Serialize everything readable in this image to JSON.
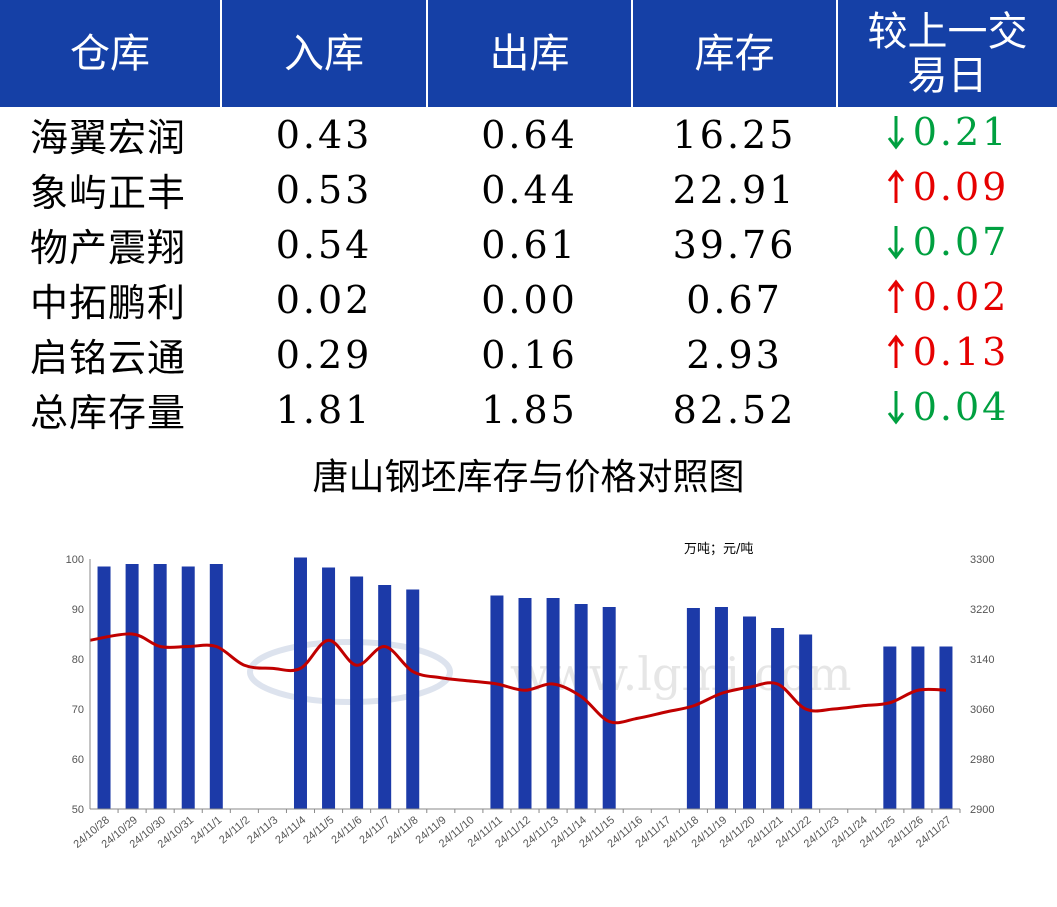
{
  "table": {
    "headers": [
      "仓库",
      "入库",
      "出库",
      "库存",
      "较上一交易日"
    ],
    "rows": [
      {
        "warehouse": "海翼宏润",
        "in": "0.43",
        "out": "0.64",
        "stock": "16.25",
        "dir": "down",
        "change": "0.21"
      },
      {
        "warehouse": "象屿正丰",
        "in": "0.53",
        "out": "0.44",
        "stock": "22.91",
        "dir": "up",
        "change": "0.09"
      },
      {
        "warehouse": "物产震翔",
        "in": "0.54",
        "out": "0.61",
        "stock": "39.76",
        "dir": "down",
        "change": "0.07"
      },
      {
        "warehouse": "中拓鹏利",
        "in": "0.02",
        "out": "0.00",
        "stock": "0.67",
        "dir": "up",
        "change": "0.02"
      },
      {
        "warehouse": "启铭云通",
        "in": "0.29",
        "out": "0.16",
        "stock": "2.93",
        "dir": "up",
        "change": "0.13"
      },
      {
        "warehouse": "总库存量",
        "in": "1.81",
        "out": "1.85",
        "stock": "82.52",
        "dir": "down",
        "change": "0.04"
      }
    ]
  },
  "colors": {
    "header_bg": "#1540a6",
    "up": "#e60000",
    "down": "#00a040",
    "bar": "#1c3aa8",
    "line": "#c00000"
  },
  "chart_data": {
    "type": "bar",
    "title": "唐山钢坯库存与价格对照图",
    "unit_label": "万吨；元/吨",
    "categories": [
      "24/10/28",
      "24/10/29",
      "24/10/30",
      "24/10/31",
      "24/11/1",
      "24/11/2",
      "24/11/3",
      "24/11/4",
      "24/11/5",
      "24/11/6",
      "24/11/7",
      "24/11/8",
      "24/11/9",
      "24/11/10",
      "24/11/11",
      "24/11/12",
      "24/11/13",
      "24/11/14",
      "24/11/15",
      "24/11/16",
      "24/11/17",
      "24/11/18",
      "24/11/19",
      "24/11/20",
      "24/11/21",
      "24/11/22",
      "24/11/23",
      "24/11/24",
      "24/11/25",
      "24/11/26",
      "24/11/27"
    ],
    "series": [
      {
        "type": "bar",
        "axis": "left",
        "values": [
          98.5,
          99,
          99,
          98.5,
          99,
          null,
          null,
          100.3,
          98.3,
          96.5,
          94.8,
          93.9,
          null,
          null,
          92.7,
          92.2,
          92.2,
          91.0,
          90.4,
          null,
          null,
          90.2,
          90.4,
          88.5,
          86.2,
          84.9,
          null,
          null,
          82.5,
          82.5,
          82.5
        ]
      },
      {
        "type": "line",
        "axis": "right",
        "values": [
          3170,
          3180,
          3160,
          3160,
          3160,
          3130,
          3125,
          3125,
          3170,
          3130,
          3160,
          3120,
          3110,
          3105,
          3100,
          3090,
          3100,
          3080,
          3040,
          3045,
          3055,
          3065,
          3085,
          3095,
          3100,
          3060,
          3060,
          3065,
          3070,
          3090,
          3090
        ]
      }
    ],
    "ylim_left": [
      50,
      100
    ],
    "yticks_left": [
      50,
      60,
      70,
      80,
      90,
      100
    ],
    "ylim_right": [
      2900,
      3300
    ],
    "yticks_right": [
      2900,
      2980,
      3060,
      3140,
      3220,
      3300
    ],
    "watermark": "www.lgmi.com"
  }
}
